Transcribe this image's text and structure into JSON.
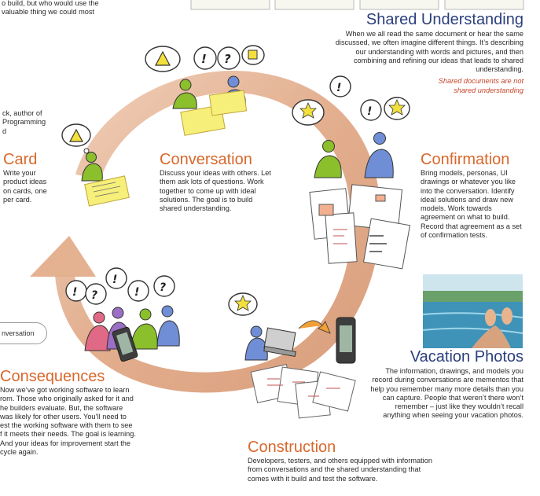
{
  "top_left_fragment": {
    "lines": [
      "o build, but who would use the",
      "valuable thing we could most"
    ]
  },
  "author_fragment": {
    "lines": [
      "ck, author of",
      "Programming",
      "d"
    ]
  },
  "shared_understanding": {
    "title": "Shared Understanding",
    "lines": [
      "When we all read the same document or hear the same",
      "discussed, we often imagine different things.  It’s describing",
      "our understanding with words and pictures, and then",
      "combining and refining our ideas that leads to shared",
      "understanding."
    ],
    "note_lines": [
      "Shared documents are not",
      "shared understanding"
    ]
  },
  "card": {
    "title": "Card",
    "lines": [
      "Write your",
      "product ideas",
      "on cards, one",
      "per card."
    ]
  },
  "conversation": {
    "title": "Conversation",
    "lines": [
      "Discuss your ideas with others.  Let",
      "them ask lots of questions.  Work",
      "together to come up with ideal",
      "solutions.  The goal is to build",
      "shared understanding."
    ]
  },
  "confirmation": {
    "title": "Confirmation",
    "lines": [
      "Bring models, personas, UI",
      "drawings or whatever you like",
      "into the conversation.  Identify",
      "ideal solutions and draw new",
      "models. Work towards",
      "agreement on what to build.",
      "Record that agreement as a set",
      "of confirmation tests."
    ]
  },
  "conversation_pill": {
    "label": "nversation"
  },
  "vacation_photos": {
    "title": "Vacation Photos",
    "lines": [
      "The information, drawings, and models you",
      "record during conversations are mementos that",
      "help you remember many more details than you",
      "can capture.  People that weren’t there won’t",
      "remember – just like they wouldn’t recall",
      "anything when seeing your vacation photos."
    ]
  },
  "consequences": {
    "title": "Consequences",
    "lines": [
      "Now we’ve got working software to learn",
      "rom.  Those who originally asked for it and",
      "he builders evaluate.  But, the software",
      "was likely for other users.  You’ll need to",
      "est the working software with them to see",
      "f it meets their needs.  The goal is learning.",
      "And your ideas for improvement start the",
      "cycle again."
    ]
  },
  "construction": {
    "title": "Construction",
    "lines": [
      "Developers, testers, and others equipped with information",
      "from conversations and the shared understanding that",
      "comes with it build and test the software."
    ]
  },
  "colors": {
    "arrow": "#e0a784",
    "arrow_light": "#efcdb6",
    "orange_heading": "#d9682c",
    "blue_heading": "#2b3f7c",
    "person_green": "#8bbf2c",
    "person_blue": "#6f8ed6",
    "person_purple": "#9a6fc4",
    "person_pink": "#e06a86",
    "sticky": "#f6ef7a"
  }
}
